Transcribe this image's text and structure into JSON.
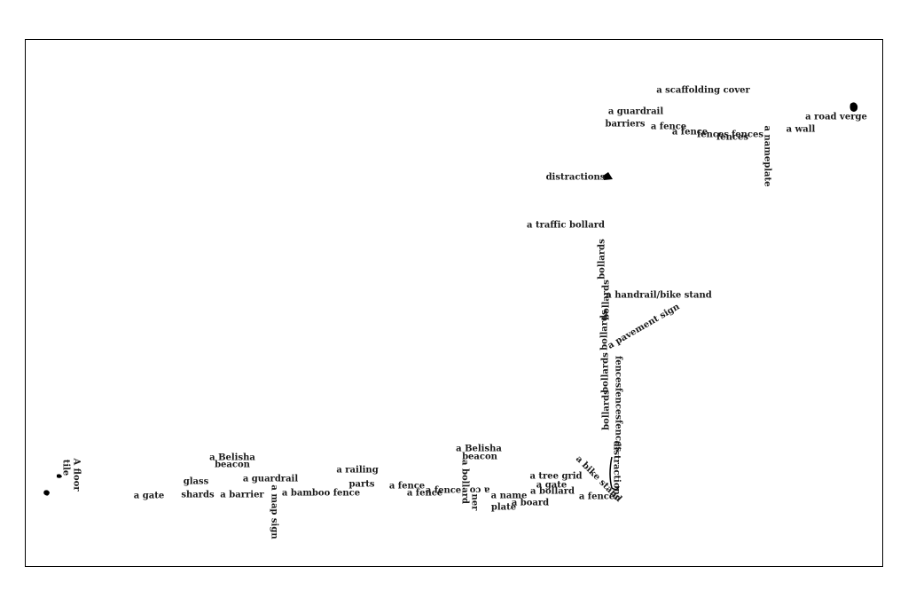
{
  "labels": [
    "a scaffolding cover",
    "a road verge",
    "a guardrail",
    "barriers",
    "a fence",
    "a fence",
    "fences",
    "fences",
    "fences",
    "a nameplate",
    "a wall",
    "distractions",
    "a traffic bollard",
    "bollards",
    "bollards",
    "a handrail/bike stand",
    "a pavement sign",
    "bollards",
    "bollards",
    "bollards",
    "fencesfencesfences",
    "distractions",
    "a bike stand",
    "a fence",
    "a tree grid",
    "a gate",
    "a bollard",
    "a name",
    "plate",
    "a board",
    "a co",
    "ner",
    "a bollard",
    "a Belisha",
    "beacon",
    "a fence",
    "a fence",
    "a fence",
    "a railing",
    "parts",
    "a bamboo fence",
    "a map sign",
    "a guardrail",
    "a barrier",
    "a Belisha",
    "beacon",
    "glass",
    "shards",
    "a gate",
    "A floor",
    "tile"
  ]
}
